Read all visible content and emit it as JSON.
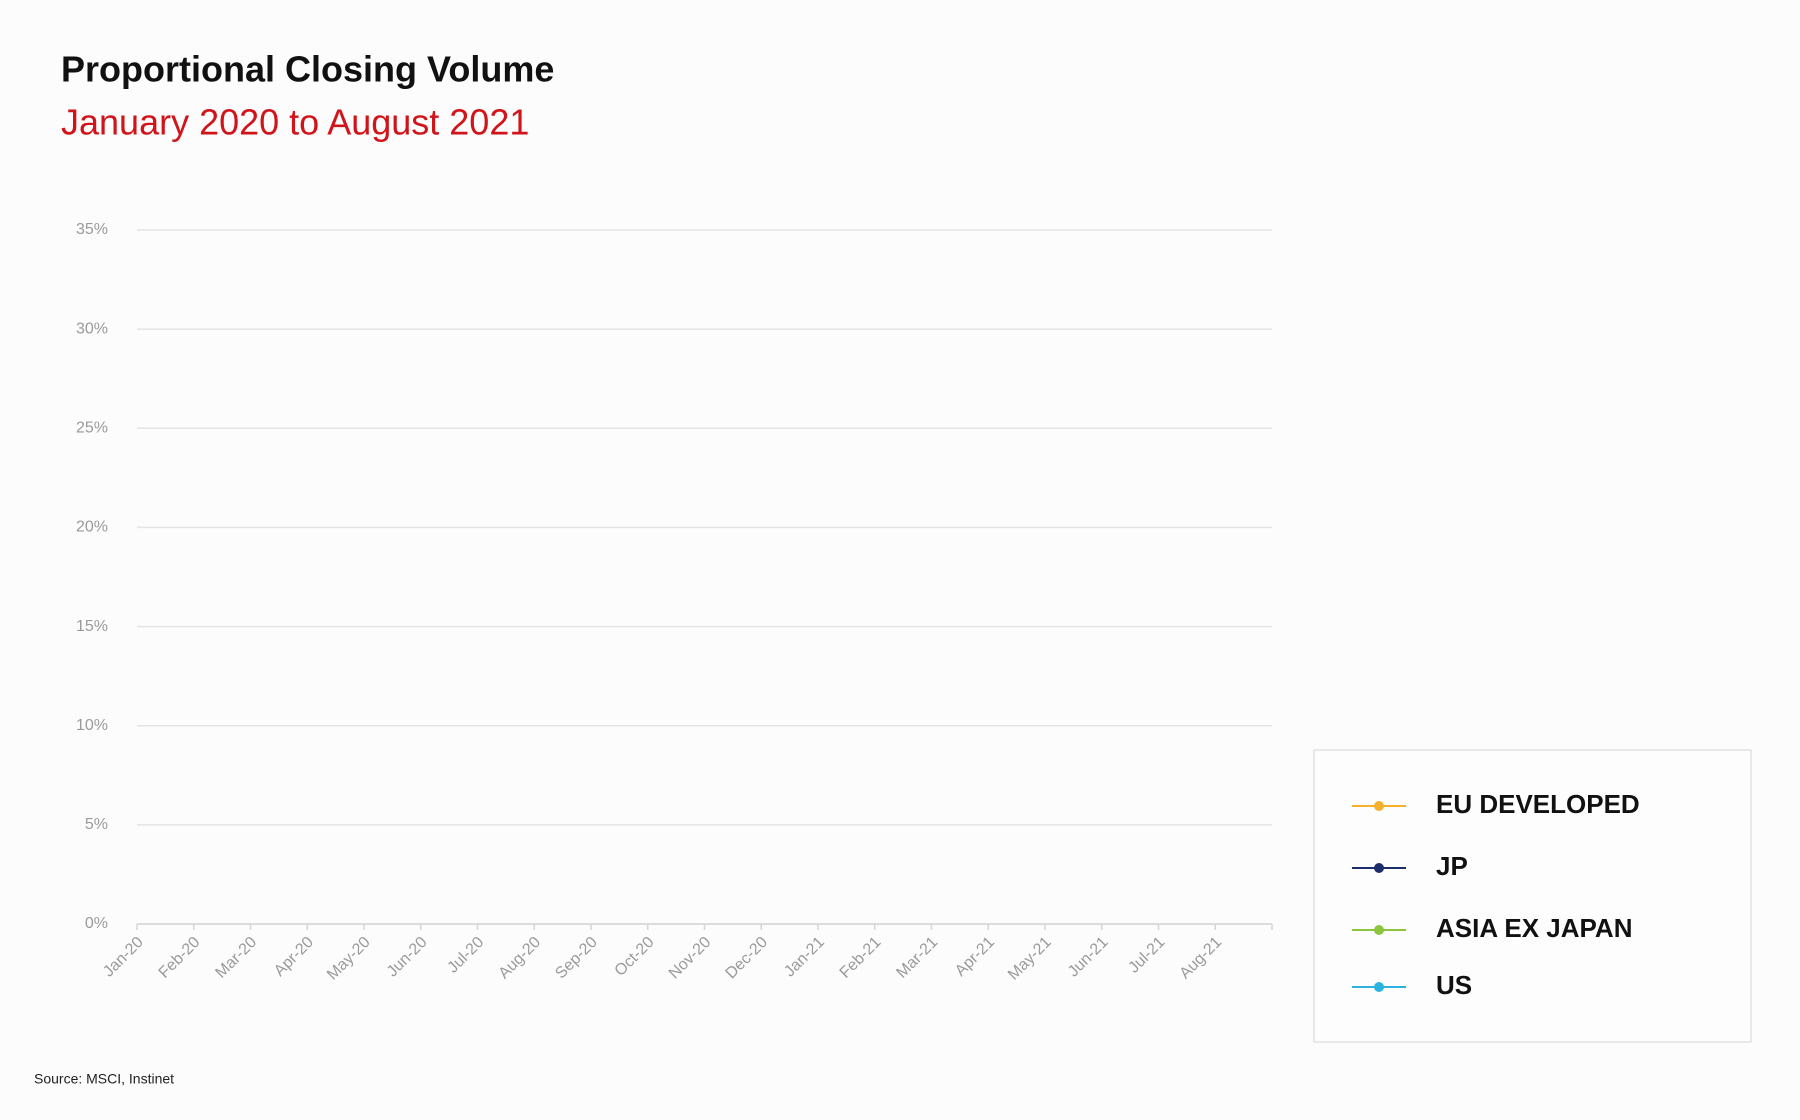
{
  "chart_data": {
    "type": "line",
    "title": "Proportional Closing Volume",
    "subtitle": "January 2020 to August 2021",
    "source": "Source: MSCI, Instinet",
    "categories": [
      "Jan-20",
      "Feb-20",
      "Mar-20",
      "Apr-20",
      "May-20",
      "Jun-20",
      "Jul-20",
      "Aug-20",
      "Sep-20",
      "Oct-20",
      "Nov-20",
      "Dec-20",
      "Jan-21",
      "Feb-21",
      "Mar-21",
      "Apr-21",
      "May-21",
      "Jun-21",
      "Jul-21",
      "Aug-21"
    ],
    "series": [
      {
        "name": "EU DEVELOPED",
        "color": "#f5b02e",
        "values": [
          null,
          null,
          null,
          null,
          null,
          null,
          null,
          null,
          null,
          null,
          null,
          null,
          null,
          null,
          null,
          null,
          null,
          null,
          null,
          null
        ]
      },
      {
        "name": "JP",
        "color": "#1b2d6b",
        "values": [
          null,
          null,
          null,
          null,
          null,
          null,
          null,
          null,
          null,
          null,
          null,
          null,
          null,
          null,
          null,
          null,
          null,
          null,
          null,
          null
        ]
      },
      {
        "name": "ASIA EX JAPAN",
        "color": "#8cc63f",
        "values": [
          null,
          null,
          null,
          null,
          null,
          null,
          null,
          null,
          null,
          null,
          null,
          null,
          null,
          null,
          null,
          null,
          null,
          null,
          null,
          null
        ]
      },
      {
        "name": "US",
        "color": "#2bb3de",
        "values": [
          null,
          null,
          null,
          null,
          null,
          null,
          null,
          null,
          null,
          null,
          null,
          null,
          null,
          null,
          null,
          null,
          null,
          null,
          null,
          null
        ]
      }
    ],
    "ylim": [
      0,
      35
    ],
    "yticks": [
      {
        "value": 0,
        "label": "0%"
      },
      {
        "value": 5,
        "label": "5%"
      },
      {
        "value": 10,
        "label": "10%"
      },
      {
        "value": 15,
        "label": "15%"
      },
      {
        "value": 20,
        "label": "20%"
      },
      {
        "value": 25,
        "label": "25%"
      },
      {
        "value": 30,
        "label": "30%"
      },
      {
        "value": 35,
        "label": "35%"
      }
    ],
    "grid": true,
    "legend": "right"
  }
}
